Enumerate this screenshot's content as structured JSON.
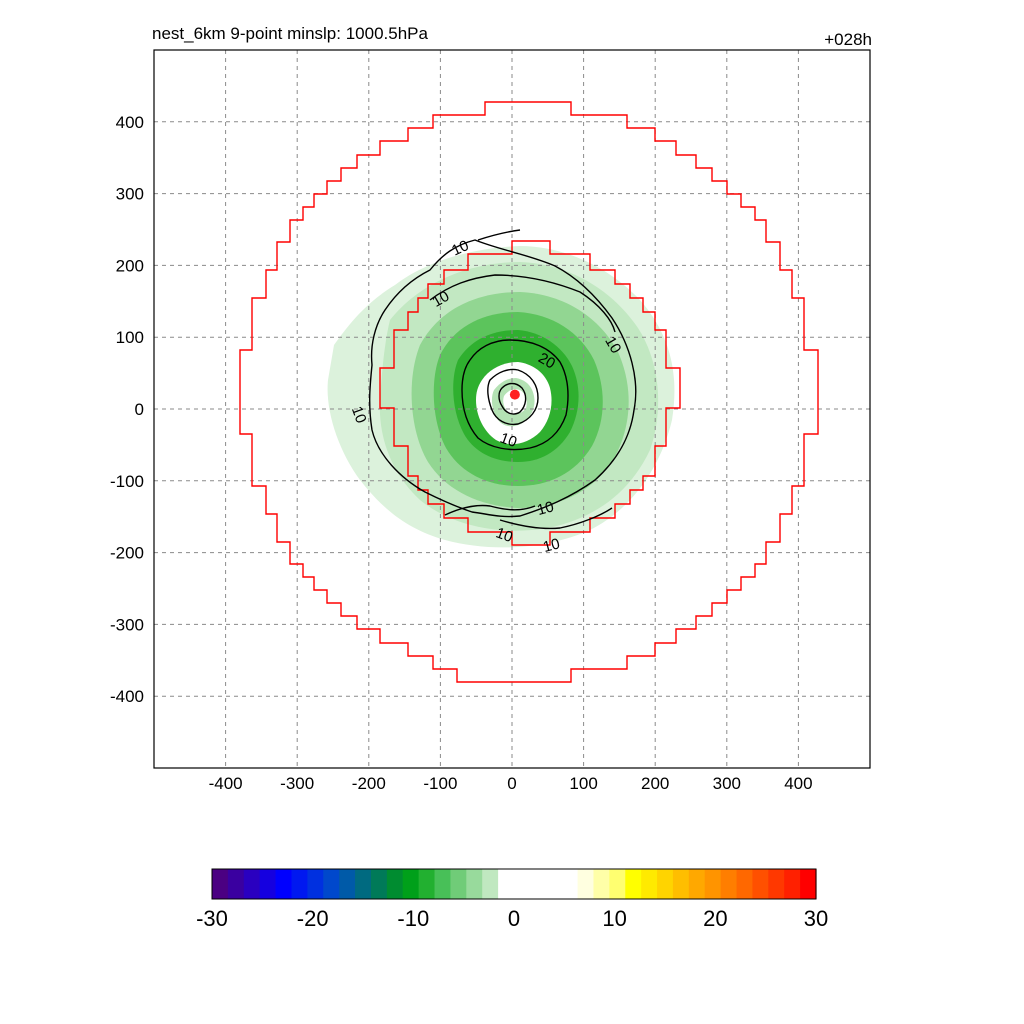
{
  "header": {
    "title_left": "nest_6km  9-point minslp: 1000.5hPa",
    "title_right": "+028h"
  },
  "chart_data": {
    "type": "heatmap",
    "title": "nest_6km  9-point minslp: 1000.5hPa",
    "forecast_hour_label": "+028h",
    "xlim": [
      -500,
      500
    ],
    "ylim": [
      -500,
      500
    ],
    "x_ticks": [
      -400,
      -300,
      -200,
      -100,
      0,
      100,
      200,
      300,
      400
    ],
    "y_ticks": [
      400,
      300,
      200,
      100,
      0,
      -100,
      -200,
      -300,
      -400
    ],
    "xlabel": "",
    "ylabel": "",
    "grid": true,
    "colorbar": {
      "ticks": [
        "-30",
        "-20",
        "-10",
        "0",
        "10",
        "20",
        "30"
      ],
      "range": [
        -30,
        30
      ],
      "colors": [
        "#4b0082",
        "#3a00a0",
        "#2a00c0",
        "#1500e0",
        "#0000ff",
        "#0018f0",
        "#0030e0",
        "#0048cc",
        "#005aa8",
        "#006a80",
        "#007a58",
        "#008c30",
        "#00a01a",
        "#22b030",
        "#48c058",
        "#70cc78",
        "#98da9c",
        "#c0e8c0",
        "#ffffff",
        "#ffffff",
        "#ffffff",
        "#ffffff",
        "#ffffff",
        "#ffffe0",
        "#ffffa8",
        "#ffff70",
        "#ffff00",
        "#ffea00",
        "#ffd400",
        "#ffbe00",
        "#ffa800",
        "#ff9400",
        "#ff7e00",
        "#ff6800",
        "#ff5000",
        "#ff3800",
        "#ff2000",
        "#ff0000"
      ]
    },
    "contour_labels": [
      "10",
      "10",
      "20",
      "10",
      "10",
      "10",
      "10",
      "10",
      "10"
    ],
    "storm_center": {
      "x": 4,
      "y": 20
    },
    "colors": {
      "boundary": "#ff0000",
      "contour": "#000000",
      "center_marker": "#ff0000",
      "green_light": "#d8f0d8",
      "green_mid": "#80d080",
      "green_dark": "#20b030"
    }
  }
}
